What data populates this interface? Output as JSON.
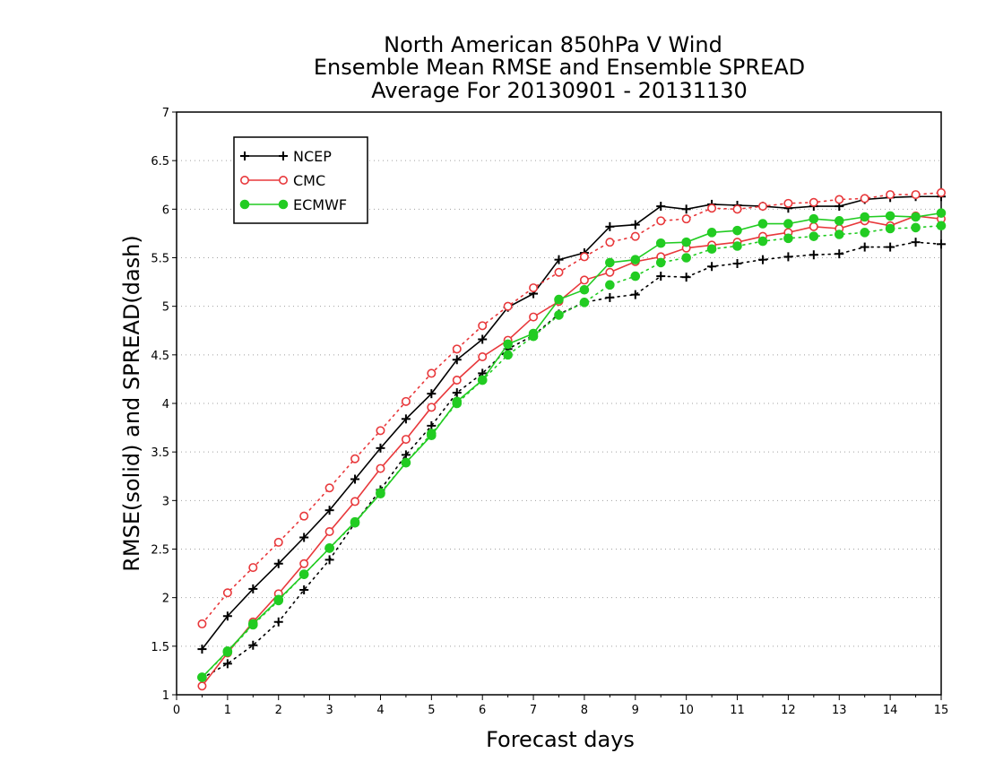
{
  "chart_data": {
    "type": "line",
    "title": [
      "North American 850hPa V Wind",
      "Ensemble Mean RMSE and Ensemble SPREAD",
      "Average For 20130901 - 20131130"
    ],
    "xlabel": "Forecast days",
    "ylabel": "RMSE(solid) and SPREAD(dash)",
    "xlim": [
      0,
      15
    ],
    "ylim": [
      1,
      7
    ],
    "xticks": [
      "0",
      "1",
      "2",
      "3",
      "4",
      "5",
      "6",
      "7",
      "8",
      "9",
      "10",
      "11",
      "12",
      "13",
      "14",
      "15"
    ],
    "yticks": [
      "1",
      "1.5",
      "2",
      "2.5",
      "3",
      "3.5",
      "4",
      "4.5",
      "5",
      "5.5",
      "6",
      "6.5",
      "7"
    ],
    "grid": true,
    "legend_position": "top-left",
    "x": [
      0.5,
      1,
      1.5,
      2,
      2.5,
      3,
      3.5,
      4,
      4.5,
      5,
      5.5,
      6,
      6.5,
      7,
      7.5,
      8,
      8.5,
      9,
      9.5,
      10,
      10.5,
      11,
      11.5,
      12,
      12.5,
      13,
      13.5,
      14,
      14.5,
      15
    ],
    "series": [
      {
        "name": "NCEP",
        "color": "#000000",
        "marker": "plus",
        "rmse": [
          1.47,
          1.81,
          2.09,
          2.35,
          2.62,
          2.9,
          3.22,
          3.54,
          3.84,
          4.1,
          4.45,
          4.66,
          4.99,
          5.13,
          5.48,
          5.55,
          5.82,
          5.84,
          6.03,
          6.0,
          6.05,
          6.04,
          6.03,
          6.01,
          6.03,
          6.03,
          6.1,
          6.12,
          6.13,
          6.13
        ],
        "spread": [
          1.17,
          1.32,
          1.51,
          1.75,
          2.08,
          2.39,
          2.77,
          3.11,
          3.47,
          3.77,
          4.11,
          4.31,
          4.56,
          4.7,
          4.92,
          5.04,
          5.09,
          5.12,
          5.31,
          5.3,
          5.41,
          5.44,
          5.48,
          5.51,
          5.53,
          5.54,
          5.61,
          5.61,
          5.66,
          5.64
        ]
      },
      {
        "name": "CMC",
        "color": "#e8383b",
        "marker": "open-circle",
        "rmse": [
          1.09,
          1.43,
          1.75,
          2.04,
          2.35,
          2.68,
          2.99,
          3.33,
          3.63,
          3.96,
          4.24,
          4.48,
          4.65,
          4.89,
          5.05,
          5.27,
          5.35,
          5.46,
          5.51,
          5.6,
          5.63,
          5.66,
          5.72,
          5.76,
          5.82,
          5.8,
          5.88,
          5.83,
          5.93,
          5.9
        ],
        "spread": [
          1.73,
          2.05,
          2.31,
          2.57,
          2.84,
          3.13,
          3.43,
          3.72,
          4.02,
          4.31,
          4.56,
          4.8,
          5.0,
          5.19,
          5.35,
          5.51,
          5.66,
          5.72,
          5.88,
          5.9,
          6.01,
          6.0,
          6.03,
          6.06,
          6.07,
          6.1,
          6.11,
          6.15,
          6.15,
          6.17
        ]
      },
      {
        "name": "ECMWF",
        "color": "#22cc22",
        "marker": "filled-circle",
        "rmse": [
          1.18,
          1.45,
          1.73,
          1.98,
          2.24,
          2.51,
          2.78,
          3.07,
          3.39,
          3.67,
          4.02,
          4.24,
          4.61,
          4.72,
          5.07,
          5.17,
          5.45,
          5.48,
          5.65,
          5.66,
          5.76,
          5.78,
          5.85,
          5.85,
          5.9,
          5.88,
          5.92,
          5.93,
          5.92,
          5.96
        ],
        "spread": [
          1.18,
          1.44,
          1.72,
          1.97,
          2.24,
          2.51,
          2.77,
          3.08,
          3.39,
          3.69,
          4.0,
          4.24,
          4.5,
          4.69,
          4.91,
          5.04,
          5.22,
          5.31,
          5.45,
          5.5,
          5.59,
          5.62,
          5.67,
          5.7,
          5.72,
          5.74,
          5.76,
          5.8,
          5.81,
          5.83
        ]
      }
    ]
  }
}
